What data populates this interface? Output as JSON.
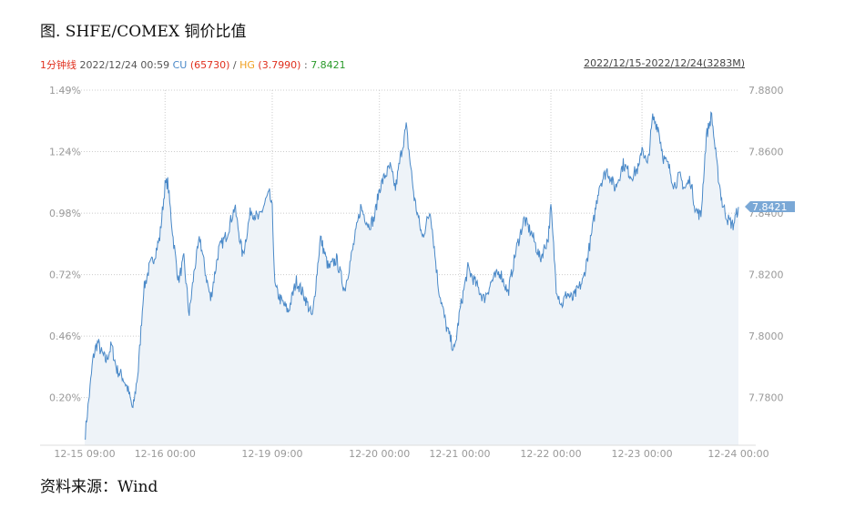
{
  "page": {
    "title": "图. SHFE/COMEX 铜价比值",
    "source": "资料来源：Wind"
  },
  "infobar": {
    "interval": "1分钟线",
    "datetime": " 2022/12/24 00:59 ",
    "cu_label": "CU",
    "cu_value": " (65730)",
    "sep": " / ",
    "hg_label": "HG",
    "hg_value": " (3.7990)",
    "colon": " : ",
    "ratio_value": "7.8421",
    "range": "2022/12/15-2022/12/24(3283M)"
  },
  "colors": {
    "line": "#4a89c8",
    "area": "#eef3f8",
    "grid": "#cccccc",
    "red": "#e0301e",
    "blue": "#4a89c8",
    "orange": "#f0a020",
    "green": "#2a9a2a",
    "last_box": "#7aa8d6"
  },
  "chart_data": {
    "type": "line",
    "left_axis": {
      "ticks": [
        "1.49%",
        "1.24%",
        "0.98%",
        "0.72%",
        "0.46%",
        "0.20%"
      ],
      "values": [
        1.49,
        1.24,
        0.98,
        0.72,
        0.46,
        0.2
      ],
      "range": [
        0.02,
        1.49
      ]
    },
    "right_axis": {
      "ticks": [
        "7.8800",
        "7.8600",
        "7.8400",
        "7.8200",
        "7.8000",
        "7.7800"
      ],
      "values": [
        7.88,
        7.86,
        7.84,
        7.82,
        7.8,
        7.78
      ],
      "range": [
        7.7645,
        7.88
      ]
    },
    "x_axis": {
      "ticks": [
        "12-15 09:00",
        "12-16 00:00",
        "12-19 09:00",
        "12-20 00:00",
        "12-21 00:00",
        "12-22 00:00",
        "12-23 00:00",
        "12-24 00:00"
      ],
      "tick_index": [
        0,
        30,
        70,
        110,
        140,
        174,
        208,
        244
      ],
      "n_index": 245
    },
    "last_value": "7.8421",
    "grid": true,
    "series": [
      {
        "x": [
          0,
          1,
          2,
          3,
          4,
          5,
          6,
          8,
          10,
          12,
          14,
          16,
          18,
          20,
          22,
          24,
          26,
          28,
          30,
          31,
          33,
          35,
          37,
          39,
          41,
          43,
          45,
          47,
          50,
          53,
          56,
          59,
          62,
          65,
          68,
          69,
          70,
          71,
          73,
          76,
          79,
          82,
          85,
          88,
          91,
          94,
          97,
          100,
          103,
          106,
          108,
          110,
          112,
          114,
          116,
          118,
          120,
          123,
          126,
          129,
          132,
          135,
          138,
          140,
          143,
          146,
          149,
          152,
          155,
          158,
          161,
          164,
          167,
          170,
          173,
          174,
          176,
          178,
          180,
          182,
          184,
          186,
          189,
          192,
          195,
          198,
          201,
          204,
          207,
          208,
          210,
          212,
          214,
          216,
          218,
          220,
          222,
          224,
          226,
          228,
          230,
          232,
          234,
          236,
          238,
          240,
          242,
          244
        ],
        "y": [
          7.7665,
          7.775,
          7.783,
          7.792,
          7.796,
          7.798,
          7.795,
          7.792,
          7.797,
          7.789,
          7.787,
          7.783,
          7.776,
          7.789,
          7.815,
          7.822,
          7.826,
          7.832,
          7.849,
          7.85,
          7.832,
          7.818,
          7.825,
          7.807,
          7.822,
          7.832,
          7.821,
          7.812,
          7.828,
          7.833,
          7.842,
          7.826,
          7.841,
          7.838,
          7.845,
          7.846,
          7.841,
          7.816,
          7.812,
          7.808,
          7.818,
          7.813,
          7.806,
          7.832,
          7.822,
          7.825,
          7.815,
          7.828,
          7.842,
          7.836,
          7.838,
          7.848,
          7.852,
          7.855,
          7.848,
          7.859,
          7.868,
          7.845,
          7.832,
          7.841,
          7.816,
          7.803,
          7.795,
          7.808,
          7.822,
          7.817,
          7.812,
          7.818,
          7.821,
          7.814,
          7.828,
          7.838,
          7.833,
          7.825,
          7.832,
          7.842,
          7.816,
          7.81,
          7.814,
          7.812,
          7.815,
          7.818,
          7.832,
          7.849,
          7.854,
          7.848,
          7.856,
          7.852,
          7.855,
          7.862,
          7.855,
          7.871,
          7.868,
          7.858,
          7.855,
          7.849,
          7.852,
          7.848,
          7.851,
          7.841,
          7.839,
          7.865,
          7.872,
          7.855,
          7.843,
          7.838,
          7.836,
          7.842
        ]
      }
    ]
  }
}
